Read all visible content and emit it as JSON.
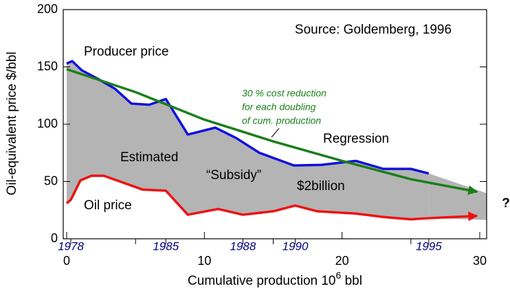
{
  "chart_data": {
    "type": "line",
    "y_label": "Oil-equivalent price $/bbl",
    "x_label": {
      "text": "Cumulative production 10",
      "sup": "6",
      "after": " bbl"
    },
    "xlim": [
      -0.25,
      30.5
    ],
    "ylim": [
      0,
      200
    ],
    "xticks": [
      0,
      10,
      20,
      30
    ],
    "xminor": [
      5,
      15,
      25
    ],
    "yticks": [
      0,
      50,
      100,
      150,
      200
    ],
    "year_markers": [
      {
        "label": "1978",
        "x": 0.3
      },
      {
        "label": "1985",
        "x": 7.2
      },
      {
        "label": "1988",
        "x": 12.8
      },
      {
        "label": "1990",
        "x": 16.6
      },
      {
        "label": "1995",
        "x": 26.3
      }
    ],
    "series": [
      {
        "name": "Producer price",
        "color": "#1010e0",
        "x": [
          0,
          0.4,
          1.1,
          2.2,
          3.5,
          4.7,
          6,
          7.2,
          8.8,
          10.8,
          12.3,
          14,
          16.5,
          18.5,
          21,
          23,
          25,
          26.3
        ],
        "values": [
          153,
          155,
          147,
          140,
          131,
          118,
          117,
          122,
          91,
          97,
          88,
          75,
          64,
          64.5,
          68,
          61,
          61,
          57
        ]
      },
      {
        "name": "Oil price",
        "color": "#ee1111",
        "x": [
          0,
          0.3,
          1,
          1.8,
          2.7,
          5.5,
          7.2,
          8.8,
          11,
          12.8,
          15,
          16.6,
          18.2,
          21,
          23,
          25,
          26.3,
          29.8
        ],
        "values": [
          31,
          34,
          51,
          55,
          55,
          43,
          42,
          21,
          26,
          21,
          24,
          29,
          24,
          22,
          19,
          17,
          18,
          20
        ]
      },
      {
        "name": "Regression",
        "color": "#1a7f1a",
        "x": [
          0,
          5,
          10,
          15,
          20,
          25,
          29.8
        ],
        "values": [
          148,
          128,
          104,
          85,
          68,
          52,
          41
        ]
      }
    ],
    "annotations": [
      "Source: Goldemberg, 1996",
      "30 % cost reduction",
      "for each doubling",
      "of cum. production",
      "Estimated",
      "“Subsidy”",
      "$2billion",
      "?"
    ]
  }
}
